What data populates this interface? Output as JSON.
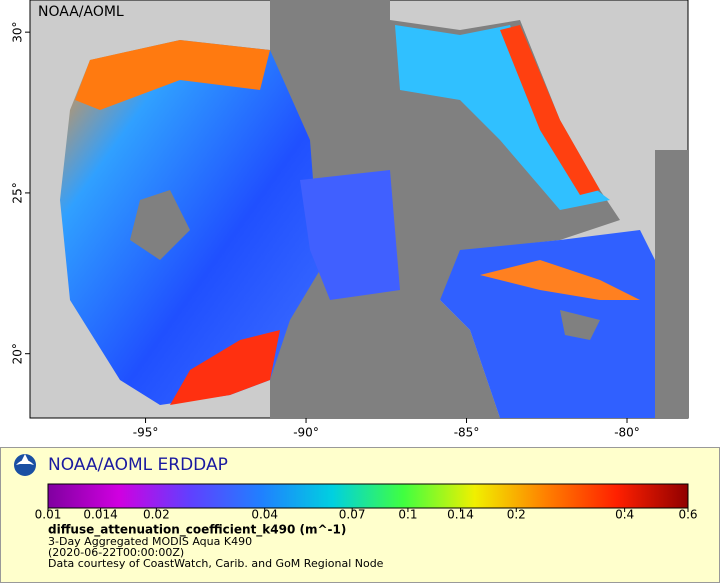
{
  "map": {
    "watermark": "NOAA/AOML",
    "xlim": [
      -98.6,
      -78.1
    ],
    "ylim": [
      18,
      31
    ],
    "xticks": [
      {
        "value": -95,
        "label": "-95°"
      },
      {
        "value": -90,
        "label": "-90°"
      },
      {
        "value": -85,
        "label": "-85°"
      },
      {
        "value": -80,
        "label": "-80°"
      }
    ],
    "yticks": [
      {
        "value": 20,
        "label": "20°"
      },
      {
        "value": 25,
        "label": "25°"
      },
      {
        "value": 30,
        "label": "30°"
      }
    ]
  },
  "legend": {
    "title": "NOAA/AOML ERDDAP",
    "scale": "log",
    "range": [
      0.01,
      0.6
    ],
    "ticks": [
      0.01,
      0.014,
      0.02,
      0.04,
      0.07,
      0.1,
      0.14,
      0.2,
      0.4,
      0.6
    ],
    "colors": [
      "#8000a0",
      "#d000e0",
      "#6040ff",
      "#2080ff",
      "#00d0e0",
      "#40ff40",
      "#f0f000",
      "#ff8000",
      "#ff2000",
      "#900000"
    ],
    "variable": "diffuse_attenuation_coefficient_k490 (m^-1)",
    "lines": [
      "3-Day Aggregated MODIS Aqua K490",
      "(2020-06-22T00:00:00Z)",
      "Data courtesy of CoastWatch, Carib. and GoM Regional Node"
    ]
  }
}
